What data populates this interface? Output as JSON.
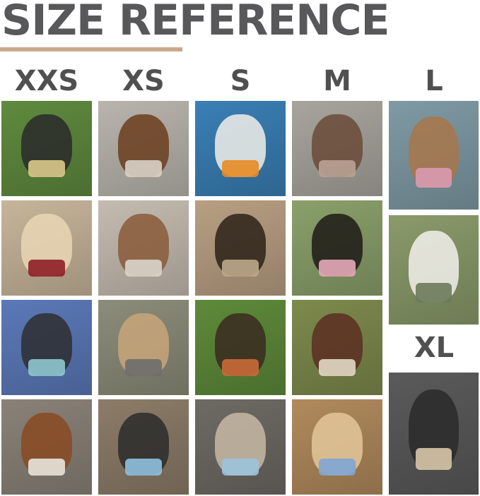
{
  "title": "SIZE REFERENCE",
  "sizes": {
    "xxs": "XXS",
    "xs": "XS",
    "s": "S",
    "m": "M",
    "l": "L",
    "xl": "XL"
  },
  "photos": [
    {
      "size": "XXS",
      "bg": "#5f8a3e",
      "dog": "#2a2a2a",
      "harness": "#d9c98a"
    },
    {
      "size": "XXS",
      "bg": "#c7b59a",
      "dog": "#e9d6b5",
      "harness": "#8e1f25"
    },
    {
      "size": "XXS",
      "bg": "#5b79b8",
      "dog": "#2e2e30",
      "harness": "#8fc7d0"
    },
    {
      "size": "XXS",
      "bg": "#8a8278",
      "dog": "#8a4a22",
      "harness": "#e8e4dc"
    },
    {
      "size": "XS",
      "bg": "#b9b4ad",
      "dog": "#6b3e1f",
      "harness": "#d8d2c6"
    },
    {
      "size": "XS",
      "bg": "#c5bcb0",
      "dog": "#8a5b3a",
      "harness": "#d9d5cc"
    },
    {
      "size": "XS",
      "bg": "#8c8c7a",
      "dog": "#c8a57a",
      "harness": "#6d6d6d"
    },
    {
      "size": "XS",
      "bg": "#8c7c68",
      "dog": "#2b2b2b",
      "harness": "#8fc0de"
    },
    {
      "size": "S",
      "bg": "#3a7fb5",
      "dog": "#f1efe9",
      "harness": "#e88a23"
    },
    {
      "size": "S",
      "bg": "#b89f82",
      "dog": "#2b2218",
      "harness": "#bca98a"
    },
    {
      "size": "S",
      "bg": "#5e8a3a",
      "dog": "#3a2a20",
      "harness": "#c96a3a"
    },
    {
      "size": "S",
      "bg": "#6e6a64",
      "dog": "#c8b8a4",
      "harness": "#9cc3dc"
    },
    {
      "size": "M",
      "bg": "#a8a59e",
      "dog": "#6a4a38",
      "harness": "#b9a294"
    },
    {
      "size": "M",
      "bg": "#8aa06a",
      "dog": "#1f1a16",
      "harness": "#e6a9b8"
    },
    {
      "size": "M",
      "bg": "#7d8a4c",
      "dog": "#5a2e22",
      "harness": "#e2d8c4"
    },
    {
      "size": "M",
      "bg": "#b08a5c",
      "dog": "#e3c79a",
      "harness": "#7fa6d4"
    },
    {
      "size": "L",
      "bg": "#7f9aa5",
      "dog": "#a8764a",
      "harness": "#d99ab0"
    },
    {
      "size": "L",
      "bg": "#8a9a6a",
      "dog": "#f2f0ec",
      "harness": "#6c7a5a"
    },
    {
      "size": "XL",
      "bg": "#5a5a5a",
      "dog": "#2a2a2a",
      "harness": "#d8c7a8"
    }
  ]
}
